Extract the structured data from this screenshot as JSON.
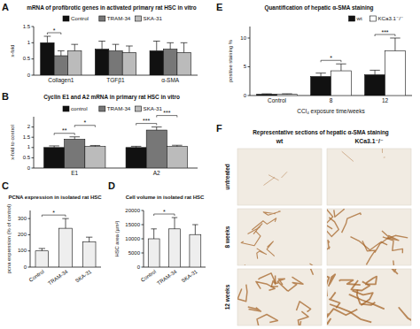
{
  "chart_data": [
    {
      "panel": "A",
      "type": "bar",
      "title": "mRNA of profibrotic genes in activated primary rat HSC in vitro",
      "y_label": "x-fold",
      "categories": [
        "Collagen1",
        "TGFβ1",
        "α-SMA"
      ],
      "series": [
        {
          "name": "Control",
          "color": "#111111",
          "values": [
            1.0,
            0.8,
            0.75
          ],
          "errors": [
            0.2,
            0.25,
            0.3
          ]
        },
        {
          "name": "TRAM-34",
          "color": "#777777",
          "values": [
            0.6,
            0.75,
            0.8
          ],
          "errors": [
            0.15,
            0.2,
            0.2
          ]
        },
        {
          "name": "SKA-31",
          "color": "#bbbbbb",
          "values": [
            0.75,
            0.7,
            0.7
          ],
          "errors": [
            0.2,
            0.2,
            0.3
          ]
        }
      ],
      "ylim": [
        0,
        1.5
      ],
      "yticks": [
        0,
        0.5,
        1,
        1.5
      ],
      "legend": "top",
      "annotations": [
        {
          "label": "*",
          "category": 0,
          "series": [
            0,
            1
          ]
        }
      ]
    },
    {
      "panel": "B",
      "type": "bar",
      "title": "Cyclin E1 and A2 mRNA in primary rat HSC in vitro",
      "y_label": "x-fold to control",
      "categories": [
        "E1",
        "A2"
      ],
      "series": [
        {
          "name": "control",
          "color": "#111111",
          "values": [
            1.0,
            1.0
          ],
          "errors": [
            0.08,
            0.06
          ]
        },
        {
          "name": "TRAM-34",
          "color": "#777777",
          "values": [
            1.4,
            1.85
          ],
          "errors": [
            0.12,
            0.15
          ]
        },
        {
          "name": "SKA-31",
          "color": "#bbbbbb",
          "values": [
            1.05,
            1.05
          ],
          "errors": [
            0.05,
            0.06
          ]
        }
      ],
      "ylim": [
        0,
        2.5
      ],
      "yticks": [
        0,
        0.5,
        1,
        1.5,
        2
      ],
      "legend": "top",
      "annotations": [
        {
          "label": "**",
          "category": 0,
          "series": [
            0,
            1
          ]
        },
        {
          "label": "*",
          "category": 0,
          "series": [
            1,
            2
          ]
        },
        {
          "label": "***",
          "category": 1,
          "series": [
            0,
            1
          ]
        },
        {
          "label": "***",
          "category": 1,
          "series": [
            1,
            2
          ]
        }
      ]
    },
    {
      "panel": "C",
      "type": "bar",
      "title": "PCNA expression in isolated rat HSC",
      "y_label": "pcna expression (% of control)",
      "categories": [
        "Control",
        "TRAM-34",
        "SKA-31"
      ],
      "values": [
        100,
        240,
        155
      ],
      "errors": [
        15,
        60,
        30
      ],
      "color": "#eeeeee",
      "ylim": [
        0,
        350
      ],
      "yticks": [
        0,
        100,
        200,
        300
      ],
      "annotations": [
        {
          "label": "*",
          "categories": [
            0,
            1
          ]
        }
      ]
    },
    {
      "panel": "D",
      "type": "bar",
      "title": "Cell volume in isolated rat HSC",
      "y_label": "HSC area (µm²)",
      "categories": [
        "Control",
        "TRAM-34",
        "SKA-31"
      ],
      "values": [
        10000,
        13500,
        11500
      ],
      "errors": [
        3500,
        4000,
        3500
      ],
      "color": "#eeeeee",
      "ylim": [
        0,
        20000
      ],
      "yticks": [
        0,
        5000,
        10000,
        15000,
        20000
      ],
      "annotations": [
        {
          "label": "*",
          "categories": [
            0,
            1
          ]
        }
      ]
    },
    {
      "panel": "E",
      "type": "bar",
      "title": "Quantification of hepatic α-SMA staining",
      "y_label": "positive staining %",
      "x_label": "CCl₄ exposure time/weeks",
      "categories": [
        "Control",
        "8",
        "12"
      ],
      "series": [
        {
          "name": "wt",
          "color": "#111111",
          "values": [
            0.2,
            3.3,
            3.6
          ],
          "errors": [
            0.1,
            0.6,
            0.8
          ]
        },
        {
          "name": "KCa3.1⁻/⁻",
          "color": "#ffffff",
          "values": [
            0.2,
            4.3,
            7.8
          ],
          "errors": [
            0.1,
            1.2,
            2.2
          ]
        }
      ],
      "ylim": [
        0,
        12
      ],
      "yticks": [
        0,
        5,
        10
      ],
      "legend": "top-right",
      "annotations": [
        {
          "label": "*",
          "category": 1,
          "series": [
            0,
            1
          ]
        },
        {
          "label": "***",
          "category": 2,
          "series": [
            0,
            1
          ]
        }
      ]
    }
  ],
  "image_panel": {
    "panel": "F",
    "title": "Representative sections of hepatic α-SMA staining",
    "columns": [
      "wt",
      "KCa3.1⁻/⁻"
    ],
    "rows": [
      "untreated",
      "8 weeks",
      "12 weeks"
    ]
  }
}
